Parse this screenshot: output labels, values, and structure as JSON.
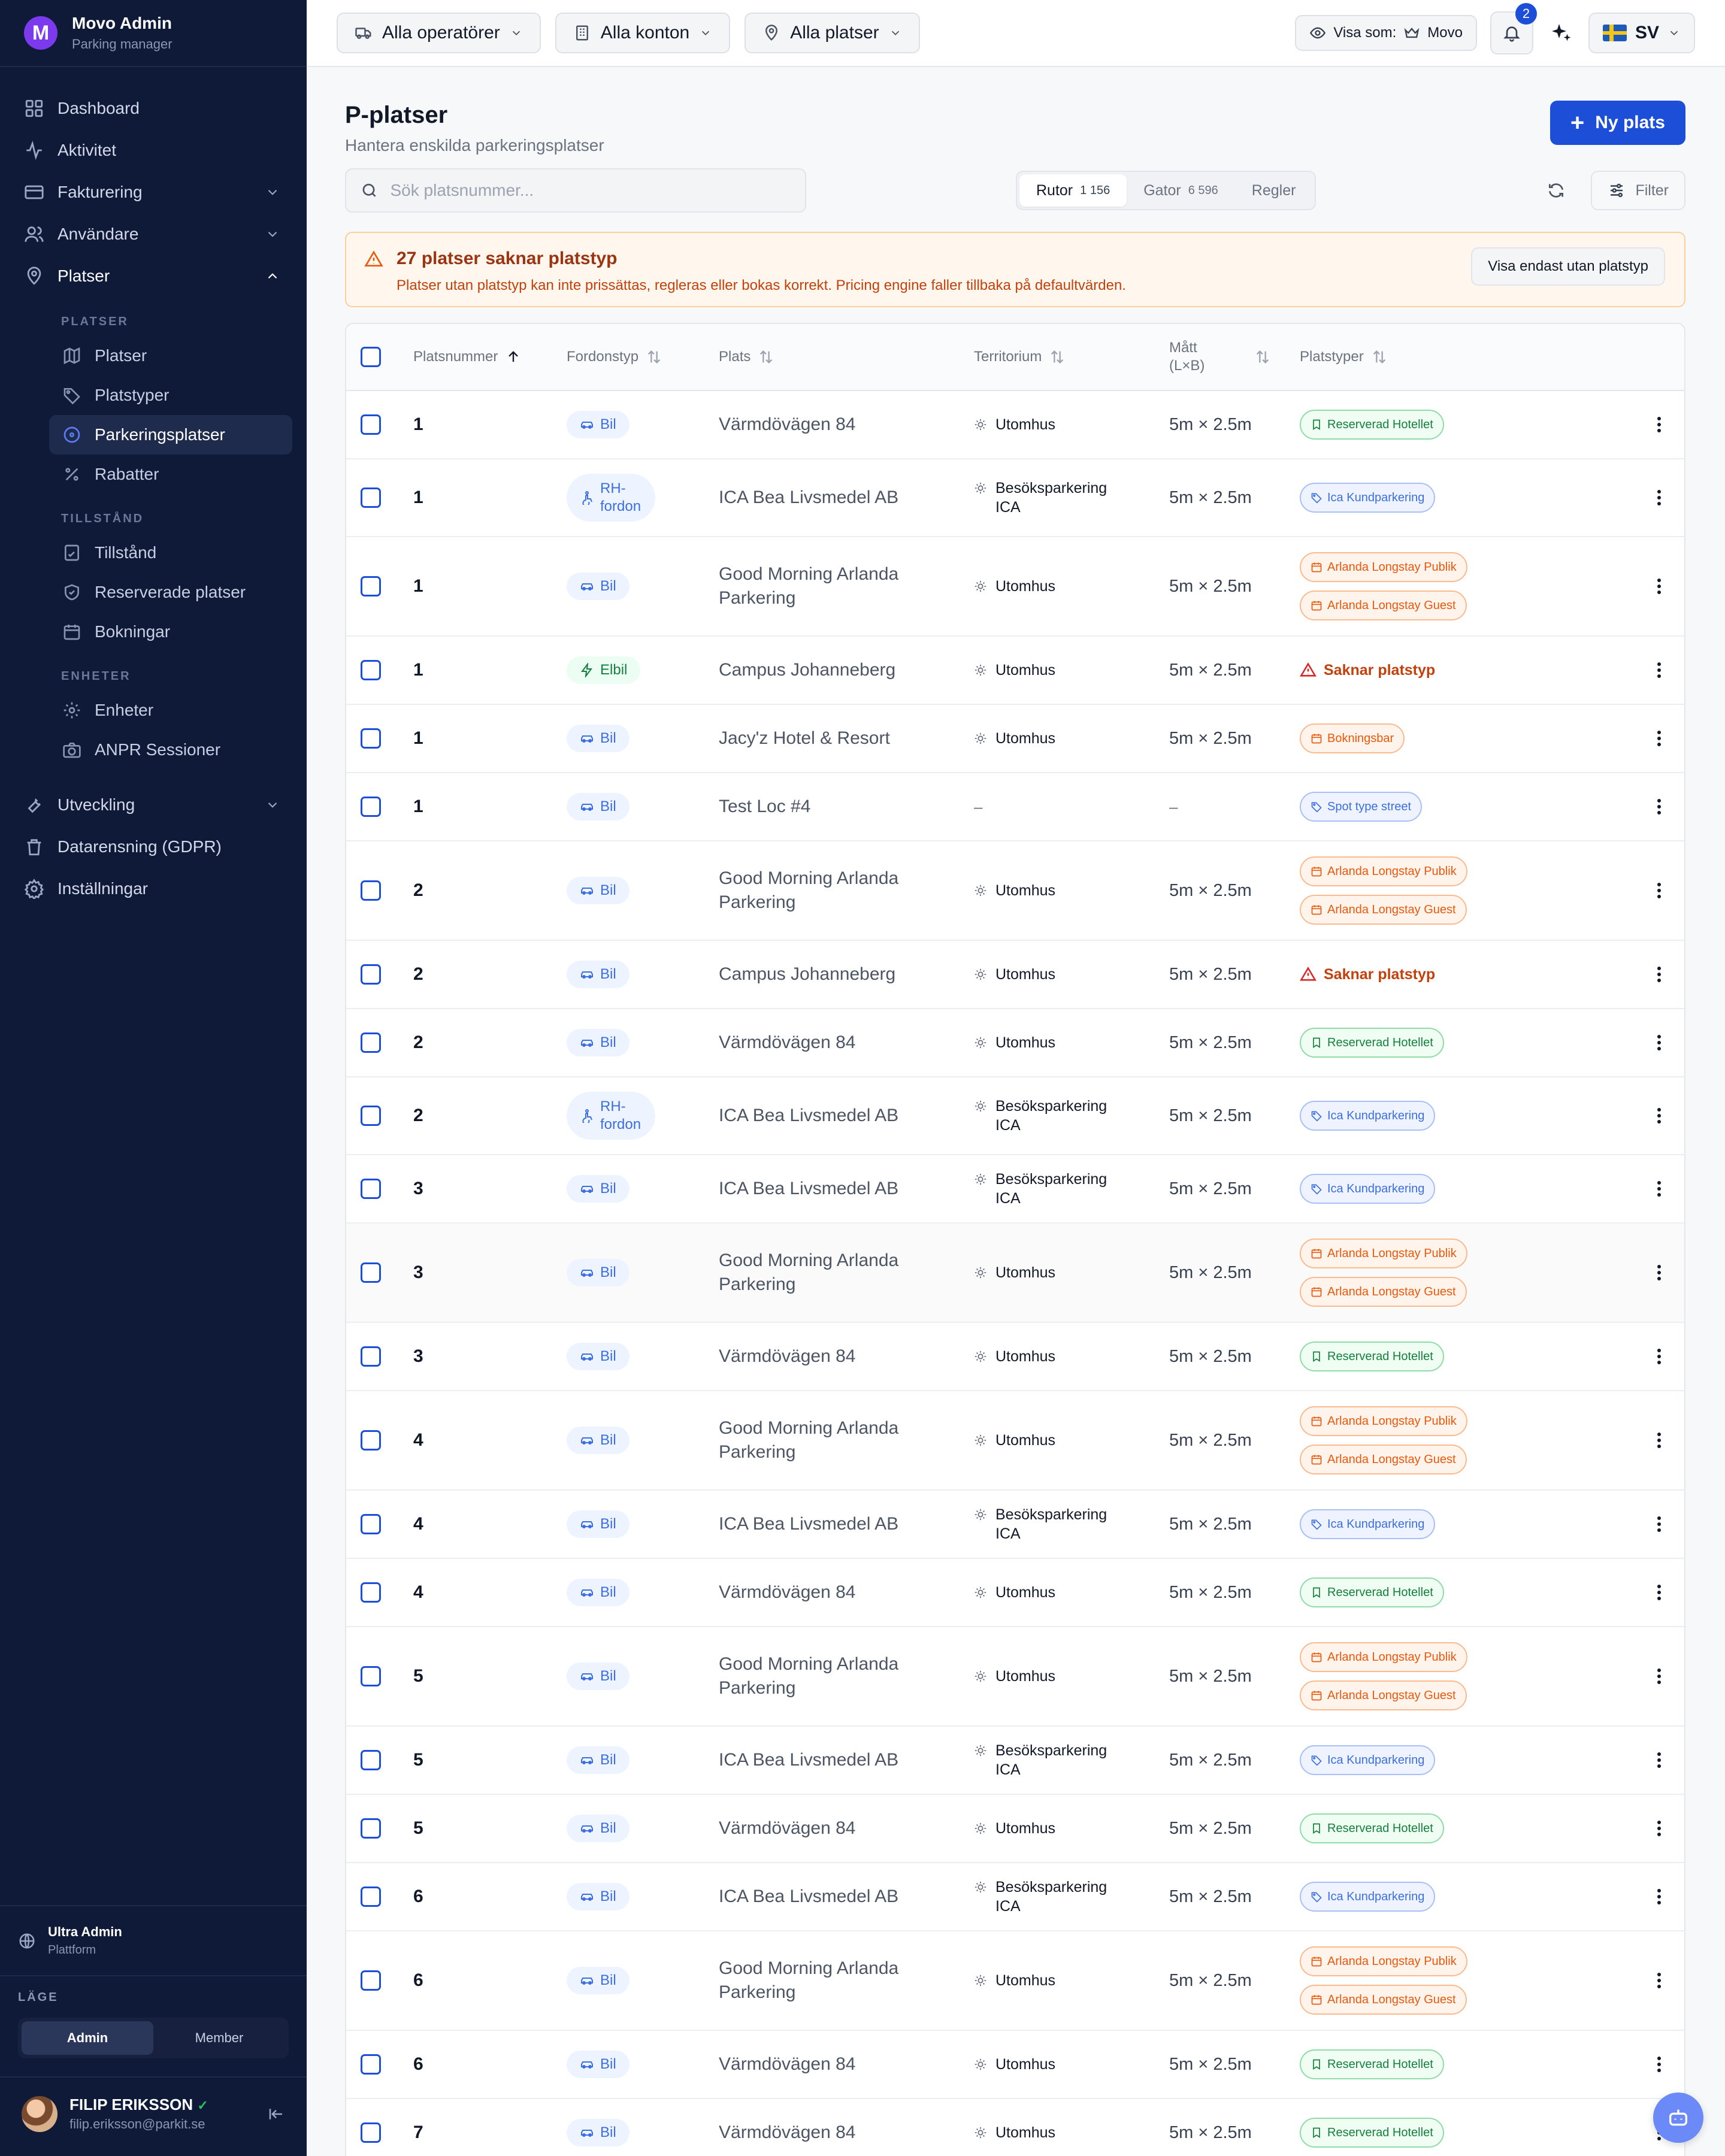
{
  "brand": {
    "name": "Movo Admin",
    "subtitle": "Parking manager",
    "logo_letter": "M"
  },
  "nav": {
    "items": [
      {
        "label": "Dashboard",
        "icon": "grid-icon"
      },
      {
        "label": "Aktivitet",
        "icon": "activity-icon"
      },
      {
        "label": "Fakturering",
        "icon": "card-icon",
        "expandable": true
      },
      {
        "label": "Användare",
        "icon": "users-icon",
        "expandable": true
      },
      {
        "label": "Platser",
        "icon": "pin-icon",
        "expanded": true
      }
    ],
    "sections": [
      {
        "title": "PLATSER",
        "items": [
          {
            "label": "Platser",
            "icon": "map-icon"
          },
          {
            "label": "Platstyper",
            "icon": "tag-icon"
          },
          {
            "label": "Parkeringsplatser",
            "icon": "target-icon",
            "active": true
          },
          {
            "label": "Rabatter",
            "icon": "percent-icon"
          }
        ]
      },
      {
        "title": "TILLSTÅND",
        "items": [
          {
            "label": "Tillstånd",
            "icon": "permit-icon"
          },
          {
            "label": "Reserverade platser",
            "icon": "shield-icon"
          },
          {
            "label": "Bokningar",
            "icon": "calendar-icon"
          }
        ]
      },
      {
        "title": "ENHETER",
        "items": [
          {
            "label": "Enheter",
            "icon": "cog-icon"
          },
          {
            "label": "ANPR Sessioner",
            "icon": "camera-icon"
          }
        ]
      }
    ],
    "bottom_items": [
      {
        "label": "Utveckling",
        "icon": "wrench-icon",
        "expandable": true
      },
      {
        "label": "Datarensning (GDPR)",
        "icon": "trash-icon"
      },
      {
        "label": "Inställningar",
        "icon": "gear-icon"
      }
    ]
  },
  "platform": {
    "title": "Ultra Admin",
    "subtitle": "Plattform"
  },
  "mode": {
    "label": "LÄGE",
    "options": [
      "Admin",
      "Member"
    ],
    "selected": "Admin"
  },
  "user": {
    "name": "FILIP ERIKSSON",
    "email": "filip.eriksson@parkit.se"
  },
  "topbar": {
    "operators": "Alla operatörer",
    "accounts": "Alla konton",
    "places": "Alla platser",
    "view_as_label": "Visa som:",
    "view_as_value": "Movo",
    "notifications": "2",
    "language": "SV"
  },
  "page": {
    "title": "P-platser",
    "subtitle": "Hantera enskilda parkeringsplatser",
    "new_button": "Ny plats",
    "search_placeholder": "Sök platsnummer...",
    "tabs": [
      {
        "label": "Rutor",
        "count": "1 156",
        "active": true
      },
      {
        "label": "Gator",
        "count": "6 596"
      },
      {
        "label": "Regler",
        "count": ""
      }
    ],
    "filter_label": "Filter"
  },
  "alert": {
    "title": "27 platser saknar platstyp",
    "description": "Platser utan platstyp kan inte prissättas, regleras eller bokas korrekt. Pricing engine faller tillbaka på defaultvärden.",
    "button": "Visa endast utan platstyp"
  },
  "table": {
    "columns": [
      "Platsnummer",
      "Fordonstyp",
      "Plats",
      "Territorium",
      "Mått (L×B)",
      "Platstyper"
    ],
    "rows": [
      {
        "num": "1",
        "vehicle": "Bil",
        "vtype": "car",
        "location": "Värmdövägen 84",
        "territory": "Utomhus",
        "dims": "5m × 2.5m",
        "types": [
          {
            "label": "Reserverad Hotellet",
            "color": "green"
          }
        ],
        "h": 114
      },
      {
        "num": "1",
        "vehicle": "RH-fordon",
        "vtype": "rh",
        "location": "ICA Bea Livsmedel AB",
        "territory": "Besöksparkering ICA",
        "dims": "5m × 2.5m",
        "types": [
          {
            "label": "Ica Kundparkering",
            "color": "blue"
          }
        ],
        "h": 130
      },
      {
        "num": "1",
        "vehicle": "Bil",
        "vtype": "car",
        "location": "Good Morning Arlanda Parkering",
        "territory": "Utomhus",
        "dims": "5m × 2.5m",
        "types": [
          {
            "label": "Arlanda Longstay Publik",
            "color": "orange"
          },
          {
            "label": "Arlanda Longstay Guest",
            "color": "orange"
          }
        ],
        "h": 166
      },
      {
        "num": "1",
        "vehicle": "Elbil",
        "vtype": "el",
        "location": "Campus Johanneberg",
        "territory": "Utomhus",
        "dims": "5m × 2.5m",
        "missing": "Saknar platstyp",
        "types": [],
        "h": 114
      },
      {
        "num": "1",
        "vehicle": "Bil",
        "vtype": "car",
        "location": "Jacy'z Hotel & Resort",
        "territory": "Utomhus",
        "dims": "5m × 2.5m",
        "types": [
          {
            "label": "Bokningsbar",
            "color": "orange"
          }
        ],
        "h": 114
      },
      {
        "num": "1",
        "vehicle": "Bil",
        "vtype": "car",
        "location": "Test Loc #4",
        "territory": "–",
        "dims": "–",
        "types": [
          {
            "label": "Spot type street",
            "color": "blue"
          }
        ],
        "h": 114
      },
      {
        "num": "2",
        "vehicle": "Bil",
        "vtype": "car",
        "location": "Good Morning Arlanda Parkering",
        "territory": "Utomhus",
        "dims": "5m × 2.5m",
        "types": [
          {
            "label": "Arlanda Longstay Publik",
            "color": "orange"
          },
          {
            "label": "Arlanda Longstay Guest",
            "color": "orange"
          }
        ],
        "h": 166
      },
      {
        "num": "2",
        "vehicle": "Bil",
        "vtype": "car",
        "location": "Campus Johanneberg",
        "territory": "Utomhus",
        "dims": "5m × 2.5m",
        "missing": "Saknar platstyp",
        "types": [],
        "h": 114
      },
      {
        "num": "2",
        "vehicle": "Bil",
        "vtype": "car",
        "location": "Värmdövägen 84",
        "territory": "Utomhus",
        "dims": "5m × 2.5m",
        "types": [
          {
            "label": "Reserverad Hotellet",
            "color": "green"
          }
        ],
        "h": 114
      },
      {
        "num": "2",
        "vehicle": "RH-fordon",
        "vtype": "rh",
        "location": "ICA Bea Livsmedel AB",
        "territory": "Besöksparkering ICA",
        "dims": "5m × 2.5m",
        "types": [
          {
            "label": "Ica Kundparkering",
            "color": "blue"
          }
        ],
        "h": 130
      },
      {
        "num": "3",
        "vehicle": "Bil",
        "vtype": "car",
        "location": "ICA Bea Livsmedel AB",
        "territory": "Besöksparkering ICA",
        "dims": "5m × 2.5m",
        "types": [
          {
            "label": "Ica Kundparkering",
            "color": "blue"
          }
        ],
        "h": 114
      },
      {
        "num": "3",
        "vehicle": "Bil",
        "vtype": "car",
        "location": "Good Morning Arlanda Parkering",
        "territory": "Utomhus",
        "dims": "5m × 2.5m",
        "types": [
          {
            "label": "Arlanda Longstay Publik",
            "color": "orange"
          },
          {
            "label": "Arlanda Longstay Guest",
            "color": "orange"
          }
        ],
        "h": 166,
        "hl": true
      },
      {
        "num": "3",
        "vehicle": "Bil",
        "vtype": "car",
        "location": "Värmdövägen 84",
        "territory": "Utomhus",
        "dims": "5m × 2.5m",
        "types": [
          {
            "label": "Reserverad Hotellet",
            "color": "green"
          }
        ],
        "h": 114
      },
      {
        "num": "4",
        "vehicle": "Bil",
        "vtype": "car",
        "location": "Good Morning Arlanda Parkering",
        "territory": "Utomhus",
        "dims": "5m × 2.5m",
        "types": [
          {
            "label": "Arlanda Longstay Publik",
            "color": "orange"
          },
          {
            "label": "Arlanda Longstay Guest",
            "color": "orange"
          }
        ],
        "h": 166
      },
      {
        "num": "4",
        "vehicle": "Bil",
        "vtype": "car",
        "location": "ICA Bea Livsmedel AB",
        "territory": "Besöksparkering ICA",
        "dims": "5m × 2.5m",
        "types": [
          {
            "label": "Ica Kundparkering",
            "color": "blue"
          }
        ],
        "h": 114
      },
      {
        "num": "4",
        "vehicle": "Bil",
        "vtype": "car",
        "location": "Värmdövägen 84",
        "territory": "Utomhus",
        "dims": "5m × 2.5m",
        "types": [
          {
            "label": "Reserverad Hotellet",
            "color": "green"
          }
        ],
        "h": 114
      },
      {
        "num": "5",
        "vehicle": "Bil",
        "vtype": "car",
        "location": "Good Morning Arlanda Parkering",
        "territory": "Utomhus",
        "dims": "5m × 2.5m",
        "types": [
          {
            "label": "Arlanda Longstay Publik",
            "color": "orange"
          },
          {
            "label": "Arlanda Longstay Guest",
            "color": "orange"
          }
        ],
        "h": 166
      },
      {
        "num": "5",
        "vehicle": "Bil",
        "vtype": "car",
        "location": "ICA Bea Livsmedel AB",
        "territory": "Besöksparkering ICA",
        "dims": "5m × 2.5m",
        "types": [
          {
            "label": "Ica Kundparkering",
            "color": "blue"
          }
        ],
        "h": 114
      },
      {
        "num": "5",
        "vehicle": "Bil",
        "vtype": "car",
        "location": "Värmdövägen 84",
        "territory": "Utomhus",
        "dims": "5m × 2.5m",
        "types": [
          {
            "label": "Reserverad Hotellet",
            "color": "green"
          }
        ],
        "h": 114
      },
      {
        "num": "6",
        "vehicle": "Bil",
        "vtype": "car",
        "location": "ICA Bea Livsmedel AB",
        "territory": "Besöksparkering ICA",
        "dims": "5m × 2.5m",
        "types": [
          {
            "label": "Ica Kundparkering",
            "color": "blue"
          }
        ],
        "h": 114
      },
      {
        "num": "6",
        "vehicle": "Bil",
        "vtype": "car",
        "location": "Good Morning Arlanda Parkering",
        "territory": "Utomhus",
        "dims": "5m × 2.5m",
        "types": [
          {
            "label": "Arlanda Longstay Publik",
            "color": "orange"
          },
          {
            "label": "Arlanda Longstay Guest",
            "color": "orange"
          }
        ],
        "h": 166
      },
      {
        "num": "6",
        "vehicle": "Bil",
        "vtype": "car",
        "location": "Värmdövägen 84",
        "territory": "Utomhus",
        "dims": "5m × 2.5m",
        "types": [
          {
            "label": "Reserverad Hotellet",
            "color": "green"
          }
        ],
        "h": 114
      },
      {
        "num": "7",
        "vehicle": "Bil",
        "vtype": "car",
        "location": "Värmdövägen 84",
        "territory": "Utomhus",
        "dims": "5m × 2.5m",
        "types": [
          {
            "label": "Reserverad Hotellet",
            "color": "green"
          }
        ],
        "h": 114
      }
    ]
  }
}
